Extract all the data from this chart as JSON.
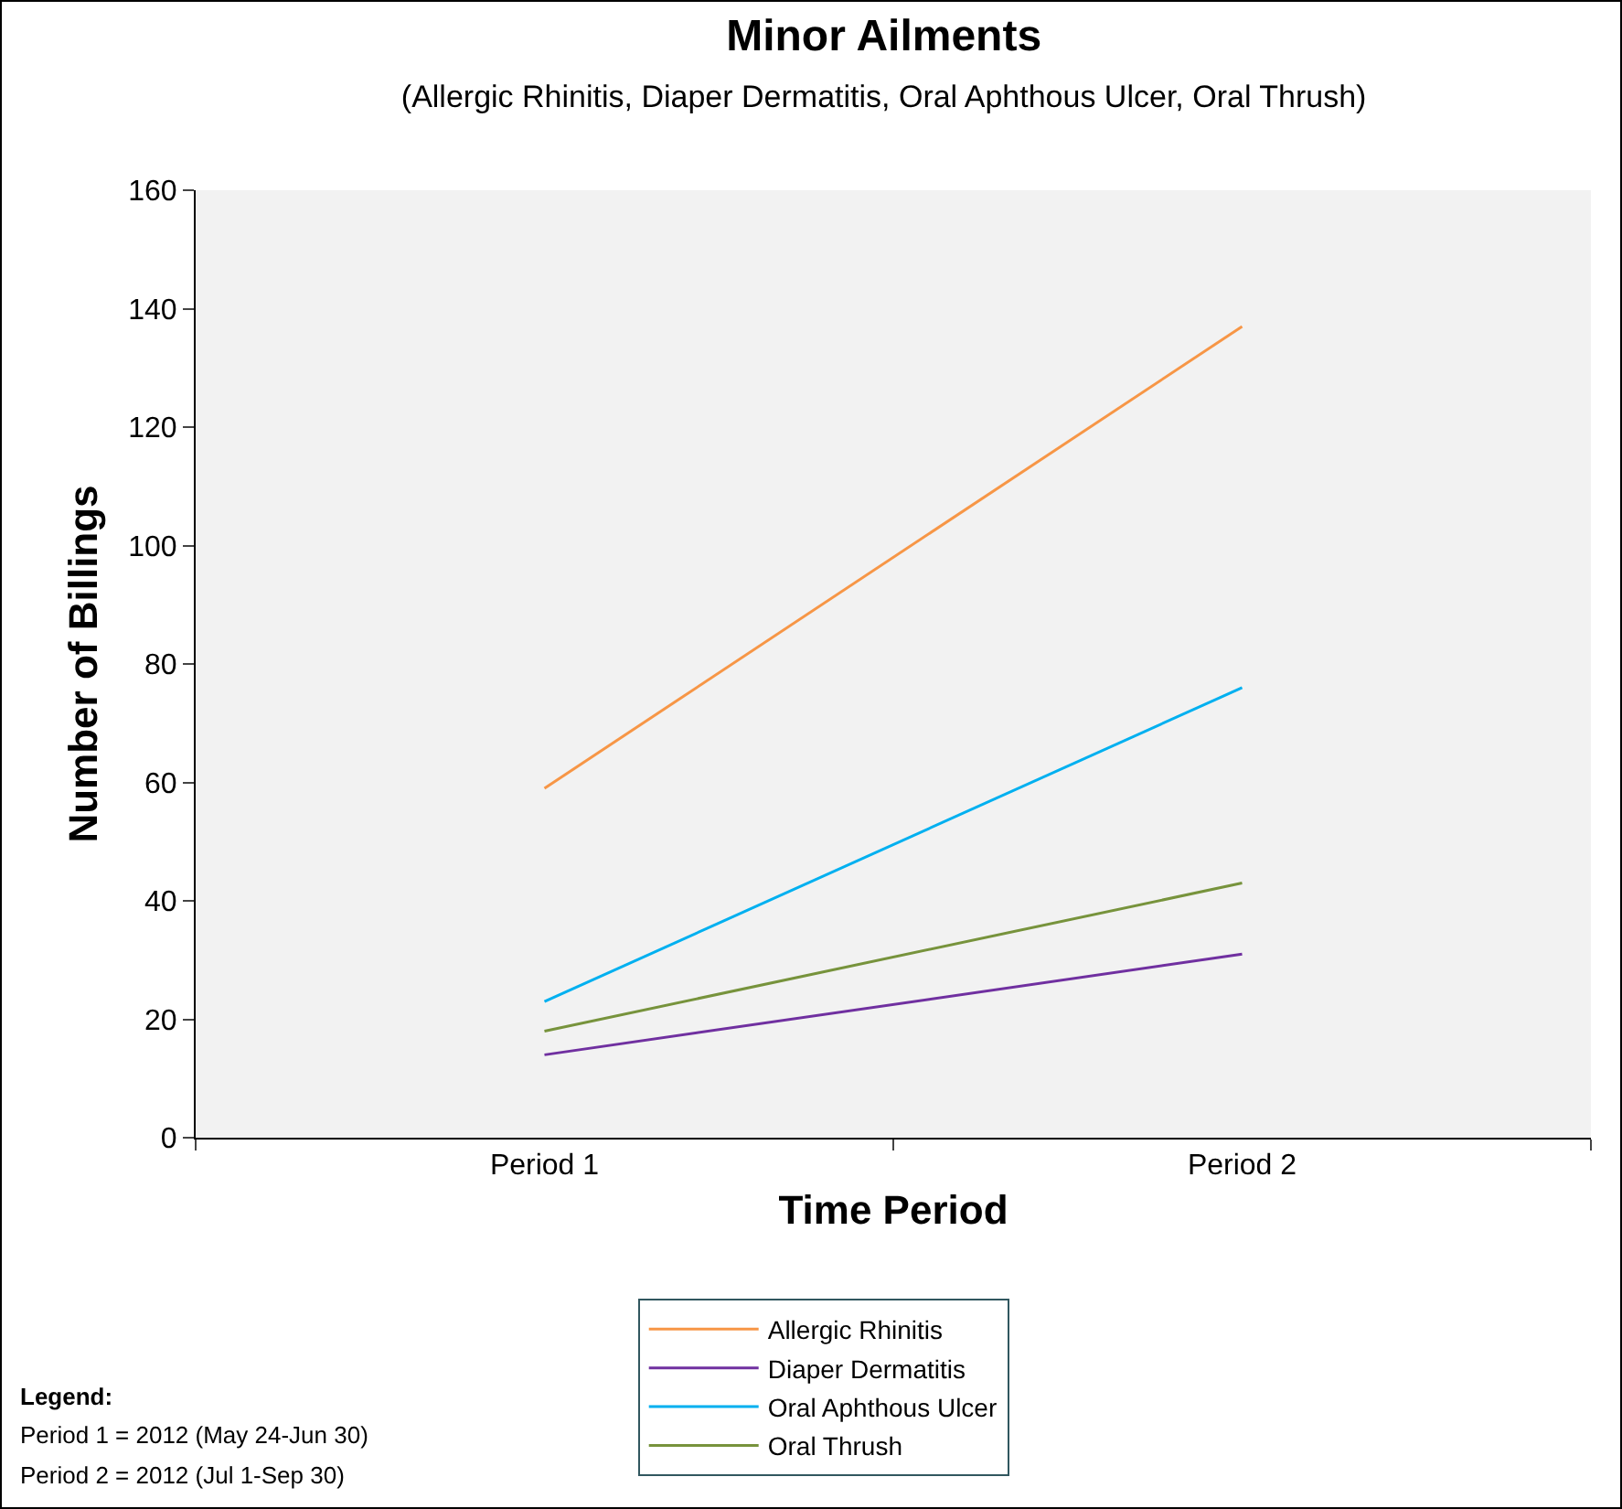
{
  "chart_data": {
    "type": "line",
    "title": "Minor Ailments",
    "subtitle": "(Allergic Rhinitis, Diaper Dermatitis, Oral Aphthous Ulcer, Oral Thrush)",
    "xlabel": "Time Period",
    "ylabel": "Number of Billings",
    "categories": [
      "Period 1",
      "Period 2"
    ],
    "series": [
      {
        "name": "Allergic Rhinitis",
        "color": "#f79646",
        "values": [
          59,
          137
        ]
      },
      {
        "name": "Diaper Dermatitis",
        "color": "#7030a0",
        "values": [
          14,
          31
        ]
      },
      {
        "name": "Oral Aphthous Ulcer",
        "color": "#00b0f0",
        "values": [
          23,
          76
        ]
      },
      {
        "name": "Oral Thrush",
        "color": "#77933c",
        "values": [
          18,
          43
        ]
      }
    ],
    "ylim": [
      0,
      160
    ],
    "yticks": [
      0,
      20,
      40,
      60,
      80,
      100,
      120,
      140,
      160
    ],
    "grid": false,
    "legend": "bottom",
    "marker": "none",
    "line_style": "solid",
    "annotations": [
      "Legend:",
      "Period 1 = 2012 (May 24-Jun 30)",
      "Period 2 = 2012 (Jul 1-Sep 30)"
    ]
  }
}
